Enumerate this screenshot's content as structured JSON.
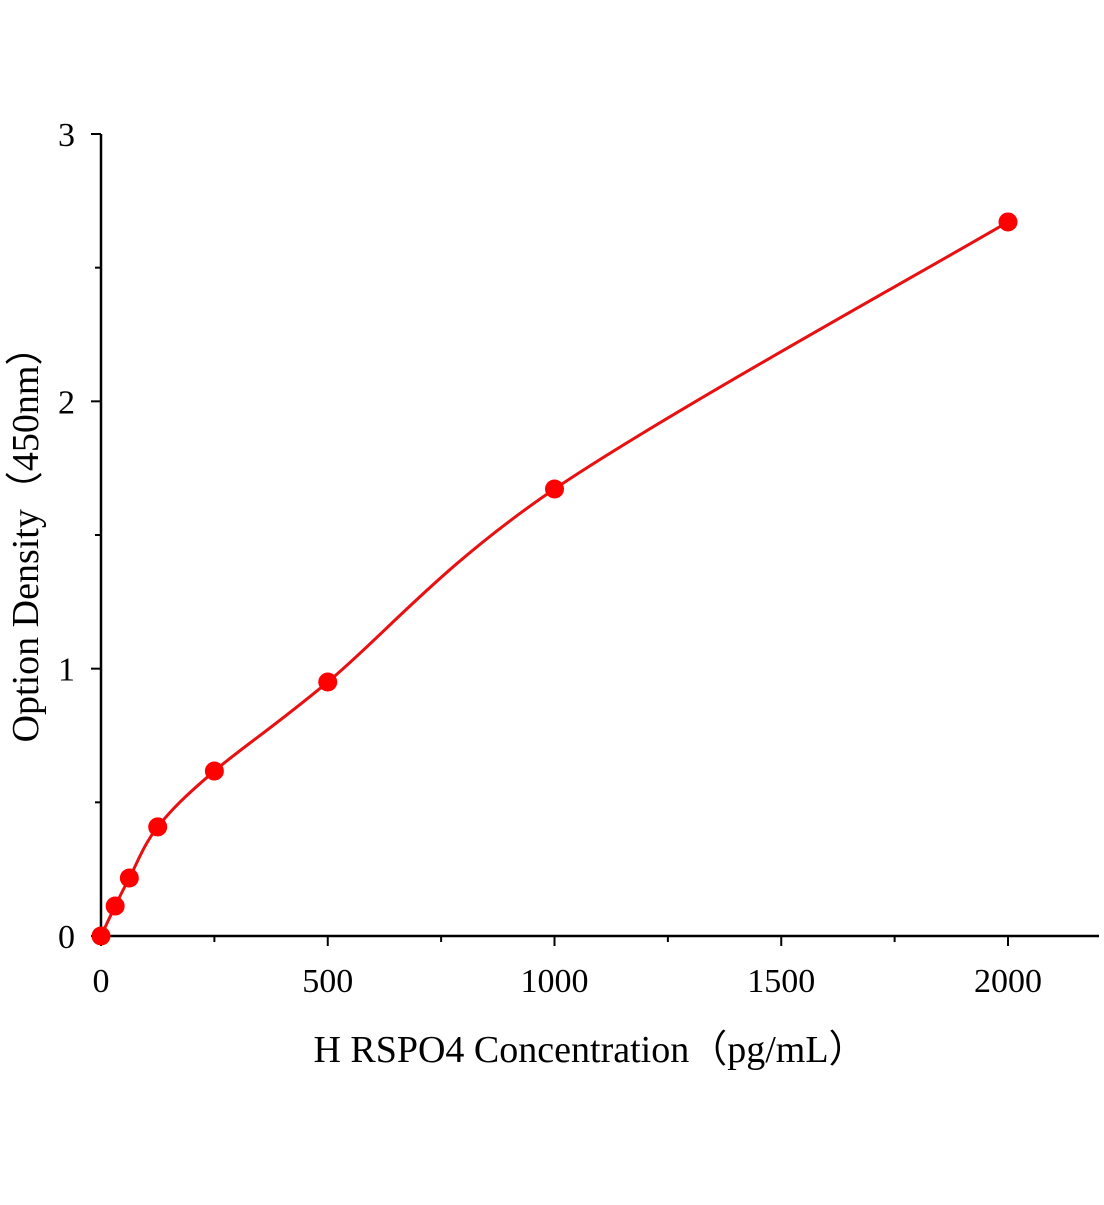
{
  "chart_data": {
    "type": "scatter",
    "title": "",
    "xlabel": "H RSPO4 Concentration（pg/mL）",
    "ylabel": "Option Density（450nm）",
    "xlim": [
      0,
      2200
    ],
    "ylim": [
      0,
      3
    ],
    "x_ticks": [
      0,
      500,
      1000,
      1500,
      2000
    ],
    "x_tick_labels": [
      "0",
      "500",
      "1000",
      "1500",
      "2000"
    ],
    "x_minor_step": 250,
    "y_ticks": [
      0,
      1,
      2,
      3
    ],
    "y_tick_labels": [
      "0",
      "1",
      "2",
      "3"
    ],
    "y_minor_step": 0.5,
    "grid": false,
    "series": [
      {
        "x": [
          0,
          31.25,
          62.5,
          125,
          250,
          500,
          1000,
          2000
        ],
        "y": [
          0.0,
          0.112,
          0.217,
          0.408,
          0.617,
          0.95,
          1.672,
          2.671
        ],
        "fit_line": true
      }
    ],
    "colors": {
      "series": "#ff0000",
      "fit": "#e81010",
      "axis": "#000000"
    }
  }
}
